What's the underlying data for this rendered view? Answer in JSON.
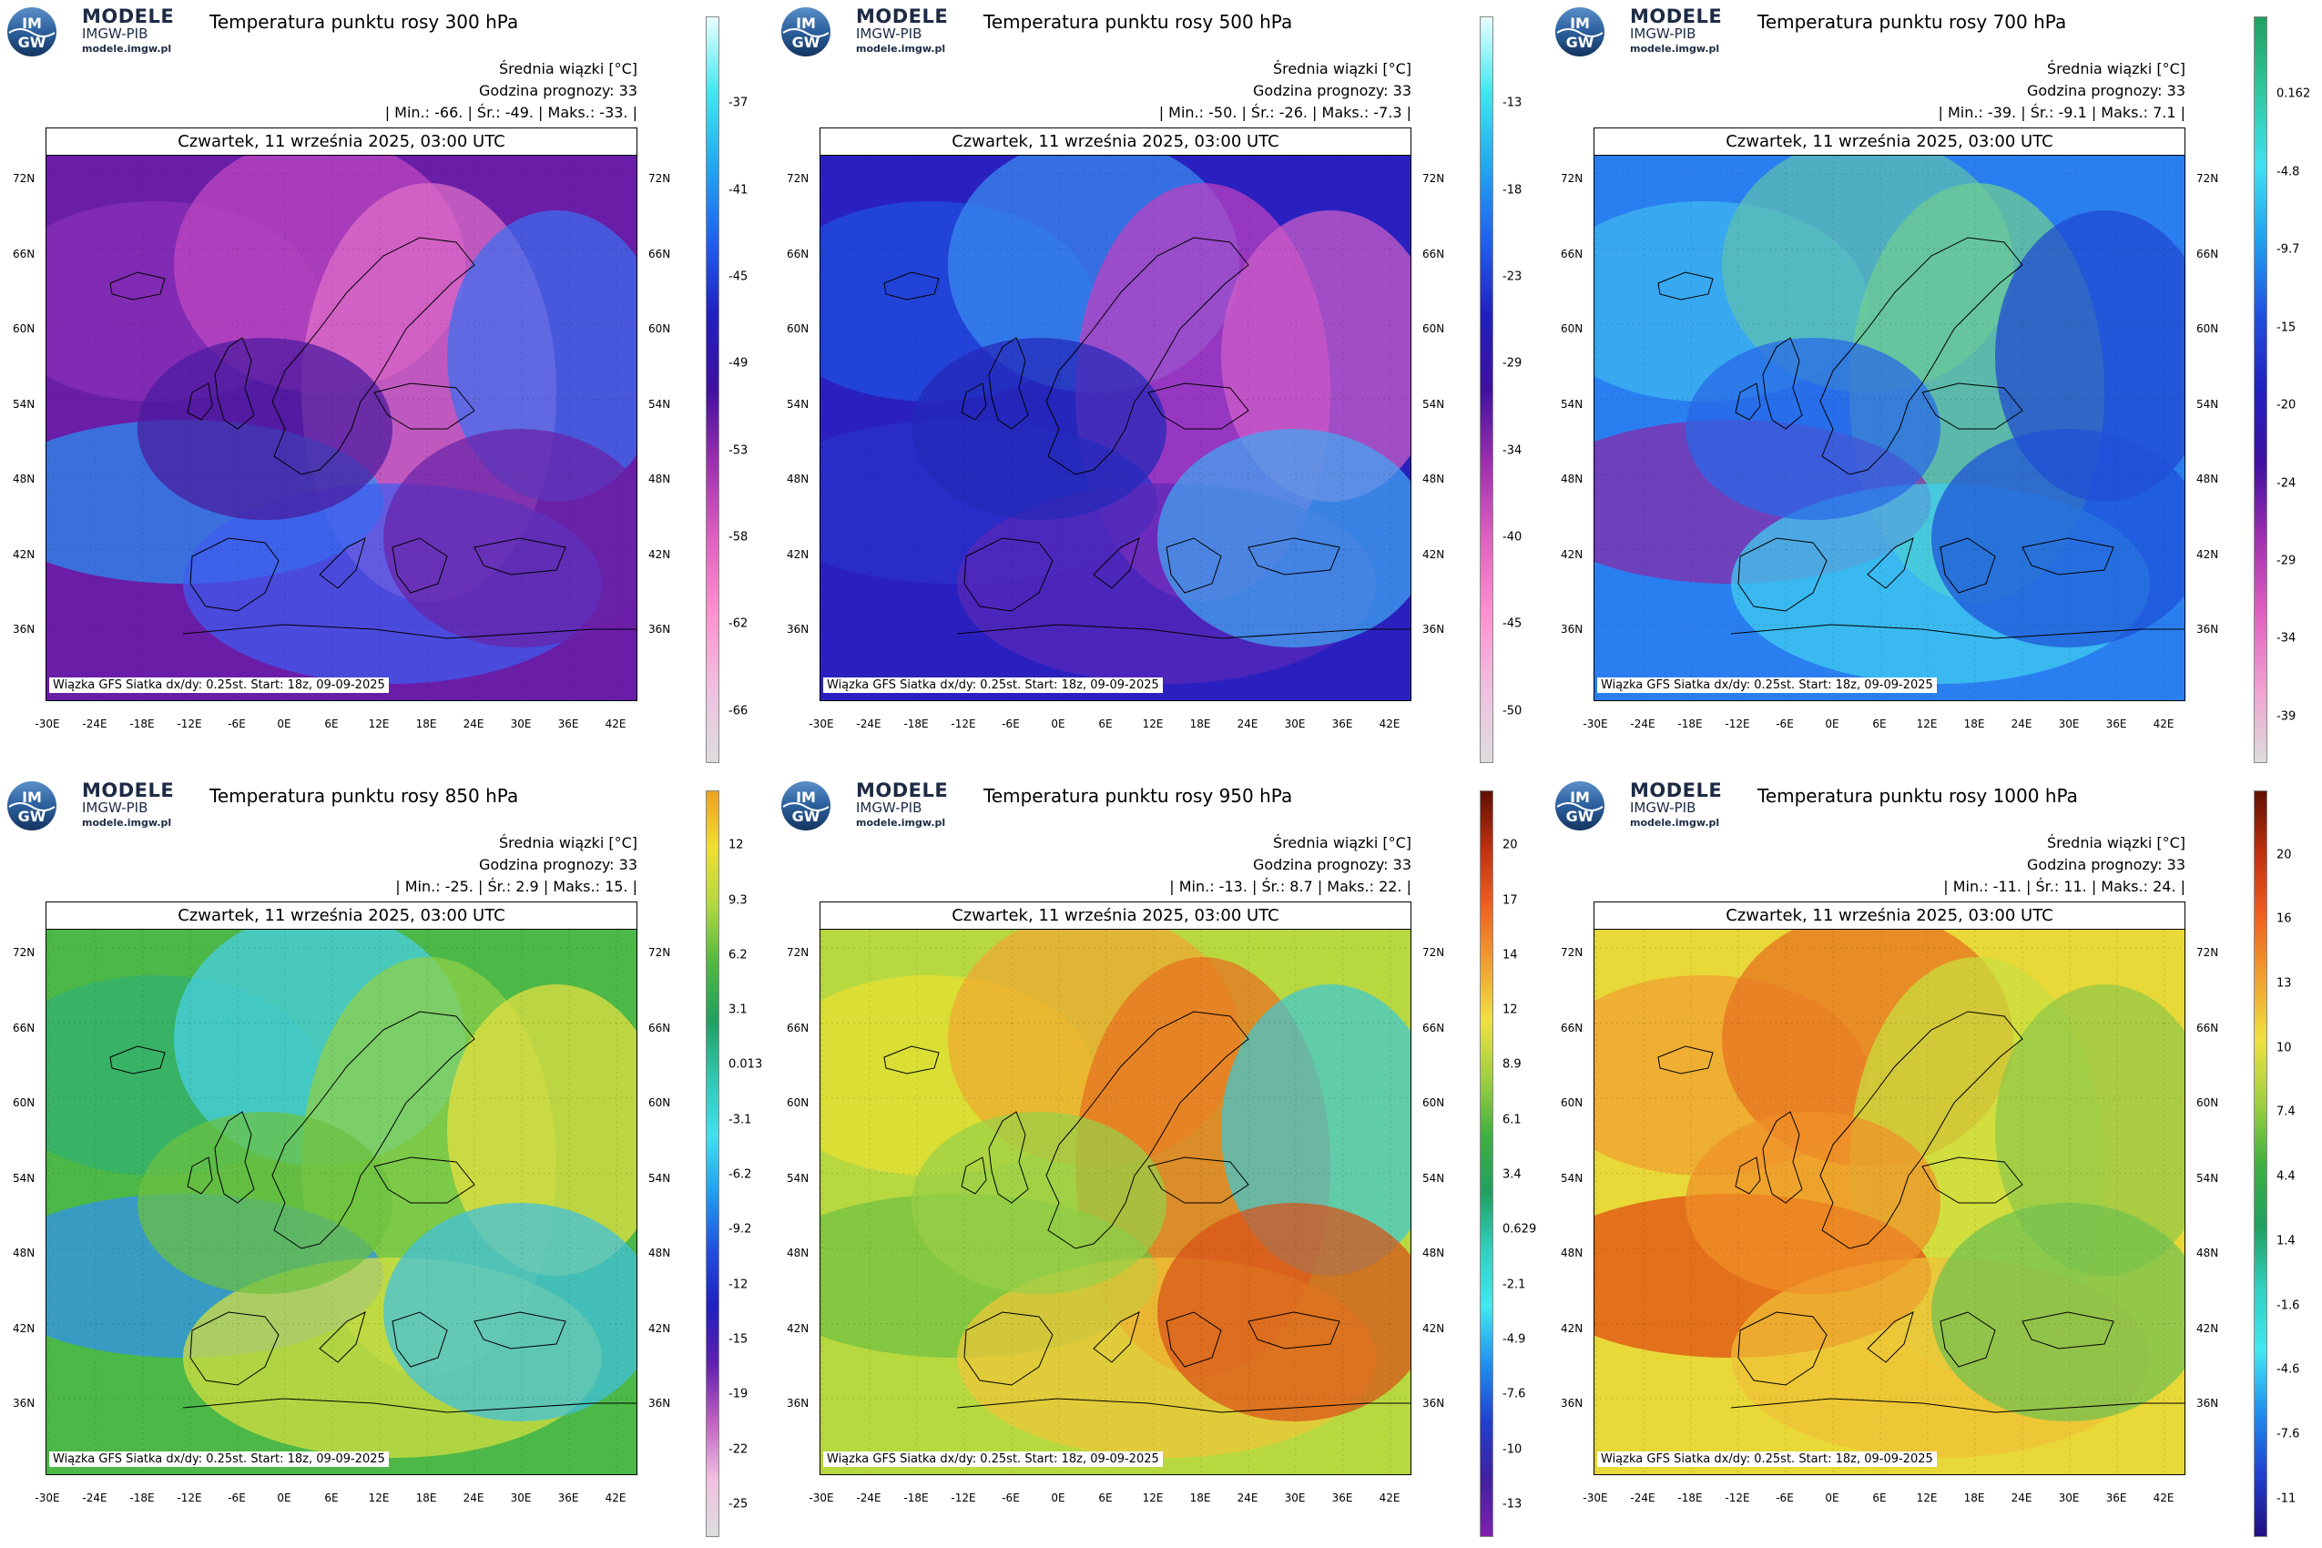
{
  "logo": {
    "line1": "MODELE",
    "line2": "IMGW-PIB",
    "line3": "modele.imgw.pl",
    "badge_text_top": "IM",
    "badge_text_bottom": "GW"
  },
  "common": {
    "subtitle": "Średnia wiązki [°C]",
    "forecast_hour": "Godzina prognozy: 33",
    "date": "Czwartek, 11 września 2025, 03:00 UTC",
    "source": "Wiązka GFS Siatka dx/dy: 0.25st. Start: 18z, 09-09-2025",
    "lat_ticks": [
      "72N",
      "66N",
      "60N",
      "54N",
      "48N",
      "42N",
      "36N"
    ],
    "lon_ticks": [
      "-30E",
      "-24E",
      "-18E",
      "-12E",
      "-6E",
      "0E",
      "6E",
      "12E",
      "18E",
      "24E",
      "30E",
      "36E",
      "42E"
    ]
  },
  "panels": [
    {
      "title": "Temperatura punktu rosy 300 hPa",
      "stats": "| Min.: -66. | Śr.: -49. | Maks.: -33. |",
      "colorbar_labels": [
        "-37",
        "-41",
        "-45",
        "-49",
        "-53",
        "-58",
        "-62",
        "-66"
      ],
      "colorbar_colors": [
        "#e8ffff",
        "#40e8f0",
        "#20a8f0",
        "#2060f0",
        "#2020c0",
        "#4010a0",
        "#a030b0",
        "#e060c0",
        "#ff90d0",
        "#f0c0e0",
        "#dddddd"
      ],
      "field": {
        "base": "#6a1ea8",
        "cells": [
          "#8a30b8",
          "#c048c0",
          "#e070c8",
          "#3b6ff0",
          "#2a90f0",
          "#3f5cf0",
          "#6a22a8",
          "#4a1a9e"
        ]
      }
    },
    {
      "title": "Temperatura punktu rosy 500 hPa",
      "stats": "| Min.: -50. | Śr.: -26. | Maks.: -7.3 |",
      "colorbar_labels": [
        "-13",
        "-18",
        "-23",
        "-29",
        "-34",
        "-40",
        "-45",
        "-50"
      ],
      "colorbar_colors": [
        "#e8ffff",
        "#40e8f0",
        "#20a8f0",
        "#2060f0",
        "#2020c0",
        "#4010a0",
        "#a030b0",
        "#e060c0",
        "#ff90d0",
        "#f0c0e0",
        "#dddddd"
      ],
      "field": {
        "base": "#2a20c0",
        "cells": [
          "#2050e0",
          "#3a8ef0",
          "#c040c0",
          "#d060c8",
          "#2a30c8",
          "#5a28b8",
          "#40a8f0",
          "#2428b8"
        ]
      }
    },
    {
      "title": "Temperatura punktu rosy 700 hPa",
      "stats": "| Min.: -39. | Śr.: -9.1 | Maks.: 7.1 |",
      "colorbar_labels": [
        "0.162",
        "-4.8",
        "-9.7",
        "-15",
        "-20",
        "-24",
        "-29",
        "-34",
        "-39"
      ],
      "colorbar_colors": [
        "#20a060",
        "#30c8a0",
        "#40e0f0",
        "#20a0f0",
        "#2050e0",
        "#2020c0",
        "#4010a0",
        "#a030b0",
        "#e060c0",
        "#f0a0d0",
        "#dddddd"
      ],
      "field": {
        "base": "#2a7ff0",
        "cells": [
          "#3fb8f0",
          "#60c0b0",
          "#6fcf90",
          "#2048d0",
          "#8a28a8",
          "#40d0f0",
          "#1f50d8",
          "#2868e8"
        ]
      }
    },
    {
      "title": "Temperatura punktu rosy 850 hPa",
      "stats": "| Min.: -25. | Śr.: 2.9 | Maks.: 15. |",
      "colorbar_labels": [
        "12",
        "9.3",
        "6.2",
        "3.1",
        "0.013",
        "-3.1",
        "-6.2",
        "-9.2",
        "-12",
        "-15",
        "-19",
        "-22",
        "-25"
      ],
      "colorbar_colors": [
        "#f0a020",
        "#f0e030",
        "#b0d840",
        "#50b840",
        "#20a060",
        "#30c8b0",
        "#40e0f0",
        "#20a0f0",
        "#2050e0",
        "#2020c0",
        "#6020b0",
        "#c060c0",
        "#f0c0e0",
        "#dddddd"
      ],
      "field": {
        "base": "#4cb848",
        "cells": [
          "#30b070",
          "#48d0e8",
          "#90d048",
          "#e8e040",
          "#3090f0",
          "#d8e040",
          "#40c0e0",
          "#6cc040"
        ]
      }
    },
    {
      "title": "Temperatura punktu rosy 950 hPa",
      "stats": "| Min.: -13. | Śr.: 8.7 | Maks.: 22. |",
      "colorbar_labels": [
        "20",
        "17",
        "14",
        "12",
        "8.9",
        "6.1",
        "3.4",
        "0.629",
        "-2.1",
        "-4.9",
        "-7.6",
        "-10",
        "-13"
      ],
      "colorbar_colors": [
        "#601000",
        "#c03010",
        "#f06020",
        "#f0a030",
        "#f0e040",
        "#a0d040",
        "#40b040",
        "#20a060",
        "#30d0c0",
        "#40e8f0",
        "#2090f0",
        "#2040d0",
        "#4020a0",
        "#8020b0"
      ],
      "field": {
        "base": "#b8d840",
        "cells": [
          "#e8e030",
          "#f0a830",
          "#e87020",
          "#40c8d0",
          "#70c040",
          "#f0c838",
          "#d85018",
          "#98d048"
        ]
      }
    },
    {
      "title": "Temperatura punktu rosy 1000 hPa",
      "stats": "| Min.: -11. | Śr.: 11. | Maks.: 24. |",
      "colorbar_labels": [
        "20",
        "16",
        "13",
        "10",
        "7.4",
        "4.4",
        "1.4",
        "-1.6",
        "-4.6",
        "-7.6",
        "-11"
      ],
      "colorbar_colors": [
        "#601000",
        "#c03010",
        "#f06020",
        "#f0a030",
        "#f0e040",
        "#a0d040",
        "#40b040",
        "#20a060",
        "#30d0c0",
        "#40e8f0",
        "#2090f0",
        "#2040d0",
        "#201080"
      ],
      "field": {
        "base": "#e8d838",
        "cells": [
          "#f0a030",
          "#e87020",
          "#c8e040",
          "#90c848",
          "#e04810",
          "#f0c038",
          "#70c050",
          "#f09028"
        ]
      }
    }
  ]
}
